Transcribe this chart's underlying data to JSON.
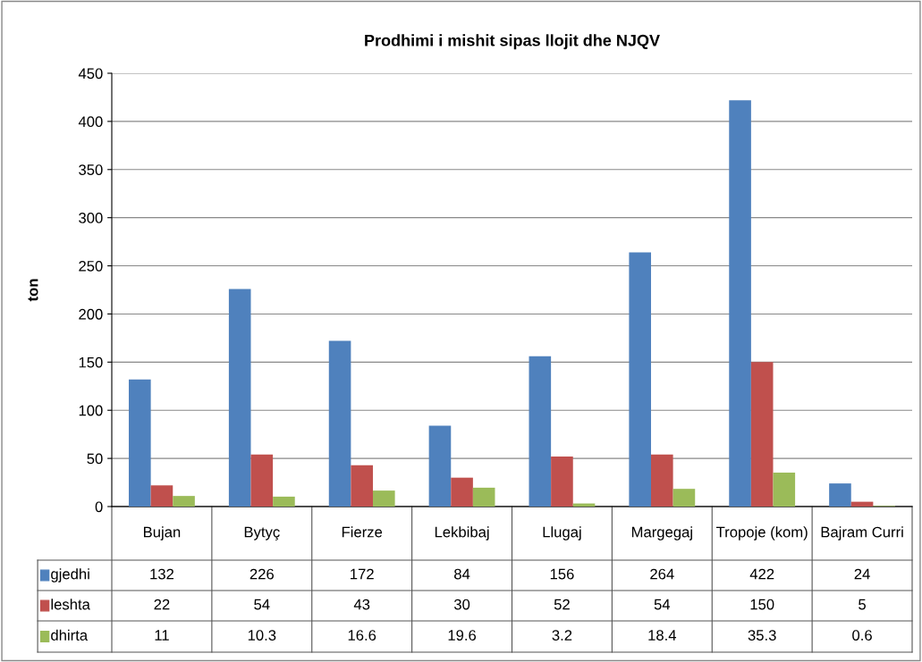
{
  "chart_data": {
    "type": "bar",
    "title": "Prodhimi i mishit sipas llojit dhe NJQV",
    "ylabel": "ton",
    "categories": [
      "Bujan",
      "Bytyç",
      "Fierze",
      "Lekbibaj",
      "Llugaj",
      "Margegaj",
      "Tropoje (kom)",
      "Bajram Curri"
    ],
    "series": [
      {
        "name": "gjedhi",
        "color": "#4f81bd",
        "values": [
          132,
          226,
          172,
          84,
          156,
          264,
          422,
          24
        ]
      },
      {
        "name": "leshta",
        "color": "#c0504d",
        "values": [
          22,
          54,
          43,
          30,
          52,
          54,
          150,
          5
        ]
      },
      {
        "name": "dhirta",
        "color": "#9bbb59",
        "values": [
          11,
          10.3,
          16.6,
          19.6,
          3.2,
          18.4,
          35.3,
          0.6
        ]
      }
    ],
    "ylim": [
      0,
      450
    ],
    "yticks": [
      0,
      50,
      100,
      150,
      200,
      250,
      300,
      350,
      400,
      450
    ],
    "grid": "y",
    "legend": "bottom left",
    "data_labels": true
  }
}
